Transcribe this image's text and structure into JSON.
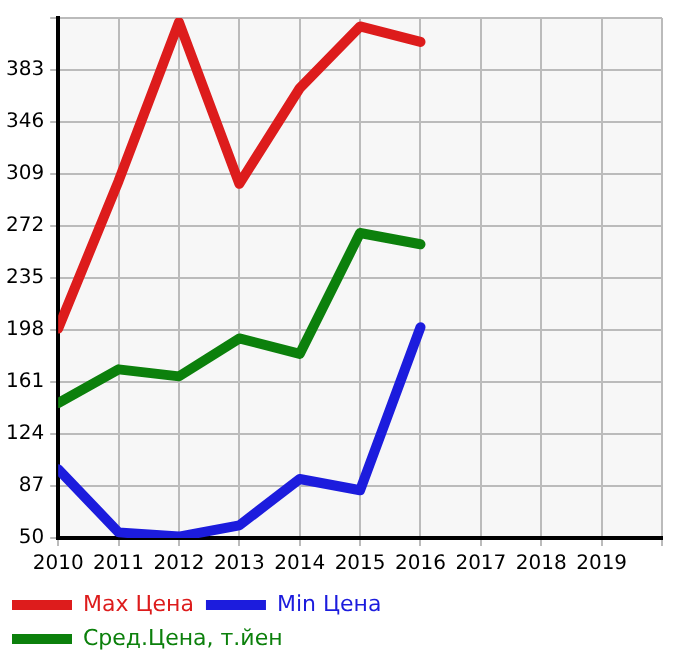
{
  "chart_data": {
    "type": "line",
    "x": [
      2010,
      2011,
      2012,
      2013,
      2014,
      2015,
      2016
    ],
    "xlim": [
      2010,
      2020
    ],
    "xticks": [
      2010,
      2011,
      2012,
      2013,
      2014,
      2015,
      2016,
      2017,
      2018,
      2019,
      {
        "value": 2020,
        "label": null
      }
    ],
    "ylim": [
      50,
      420
    ],
    "yticks": [
      50,
      87,
      124,
      161,
      198,
      235,
      272,
      309,
      346,
      383,
      {
        "value": 420,
        "label": null
      }
    ],
    "grid": true,
    "legend": "bottom",
    "marker": "none",
    "line_style": "solid",
    "series": [
      {
        "name": "Max Цена",
        "color": "#dd1c1c",
        "values": [
          199,
          304,
          417,
          302,
          370,
          414,
          403
        ]
      },
      {
        "name": "Min Цена",
        "color": "#1c1cdd",
        "values": [
          99,
          54,
          51,
          59,
          92,
          84,
          200
        ]
      },
      {
        "name": "Сред.Цена, т.йен",
        "color": "#0c800c",
        "values": [
          146,
          170,
          165,
          192,
          181,
          267,
          259
        ]
      }
    ]
  }
}
